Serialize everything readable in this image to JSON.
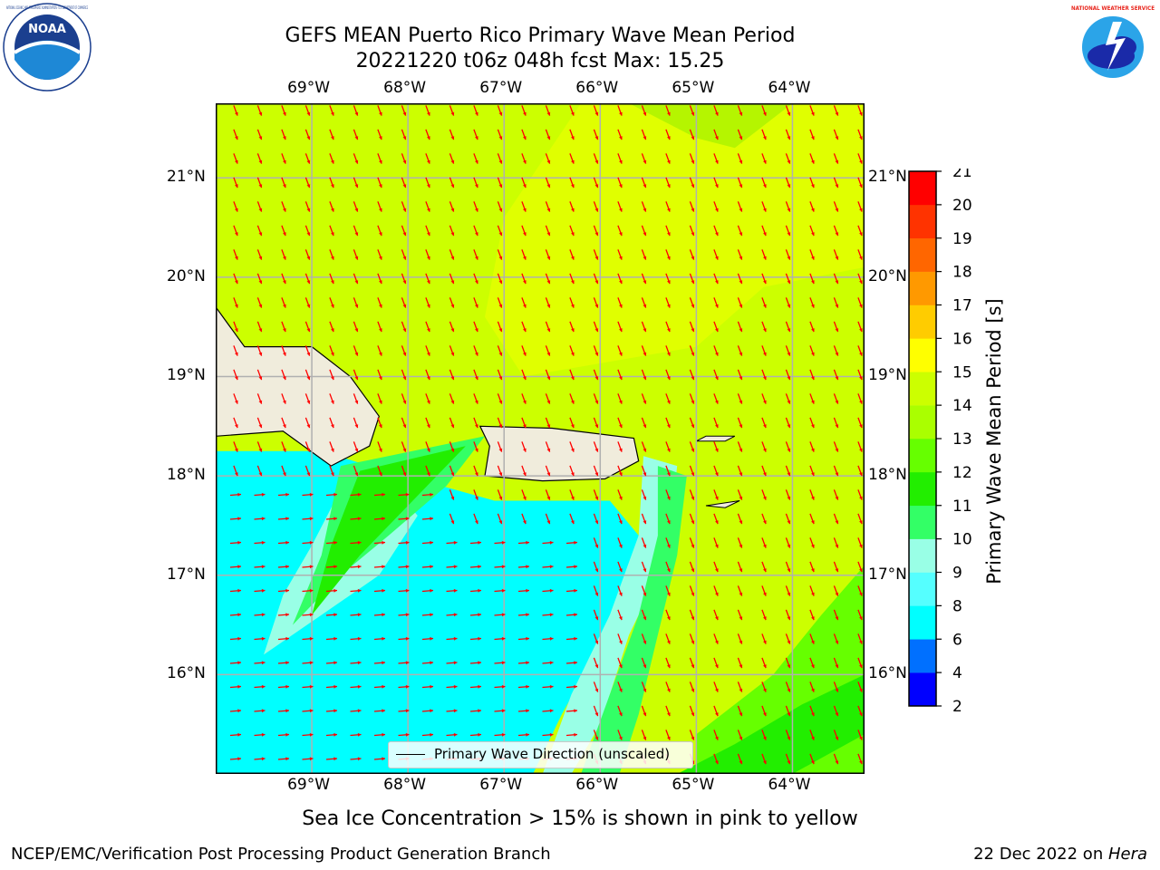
{
  "header": {
    "title_line1": "GEFS MEAN Puerto Rico Primary Wave Mean Period",
    "title_line2": "20221220 t06z 048h fcst   Max: 15.25"
  },
  "logos": {
    "left": {
      "icon": "noaa-logo-icon",
      "text": "NOAA",
      "ring_text": "NATIONAL OCEANIC AND ATMOSPHERIC ADMINISTRATION · U.S. DEPARTMENT OF COMMERCE"
    },
    "right": {
      "icon": "nws-logo-icon",
      "ring_text": "NATIONAL WEATHER SERVICE"
    }
  },
  "map": {
    "lon_labels": [
      "69°W",
      "68°W",
      "67°W",
      "66°W",
      "65°W",
      "64°W"
    ],
    "lat_labels": [
      "21°N",
      "20°N",
      "19°N",
      "18°N",
      "17°N",
      "16°N"
    ],
    "lon_range": [
      -70.0,
      -63.25
    ],
    "lat_range": [
      15.0,
      21.75
    ],
    "grid": true,
    "colors": {
      "land": "#f0ecdc",
      "coast": "#000000",
      "arrow": "#ff0000",
      "grid": "#b0b0b0"
    }
  },
  "legend": {
    "label": "Primary Wave Direction (unscaled)",
    "placement": "bottom-center"
  },
  "colorbar": {
    "title": "Primary Wave Mean Period [s]",
    "ticks": [
      "2",
      "4",
      "6",
      "8",
      "9",
      "10",
      "11",
      "12",
      "13",
      "14",
      "15",
      "16",
      "17",
      "18",
      "19",
      "20",
      "21"
    ],
    "colors": [
      "#0000ff",
      "#0070ff",
      "#00ffff",
      "#55ffff",
      "#99ffe6",
      "#33ff66",
      "#22ee00",
      "#66ff00",
      "#aaff00",
      "#ccff00",
      "#ffff00",
      "#ffcc00",
      "#ff9900",
      "#ff6600",
      "#ff3300",
      "#ff0000"
    ]
  },
  "caption": "Sea Ice Concentration > 15% is shown in pink to yellow",
  "footer": {
    "left": "NCEP/EMC/Verification Post Processing Product Generation Branch",
    "date": "22 Dec 2022 on ",
    "host": "Hera"
  }
}
